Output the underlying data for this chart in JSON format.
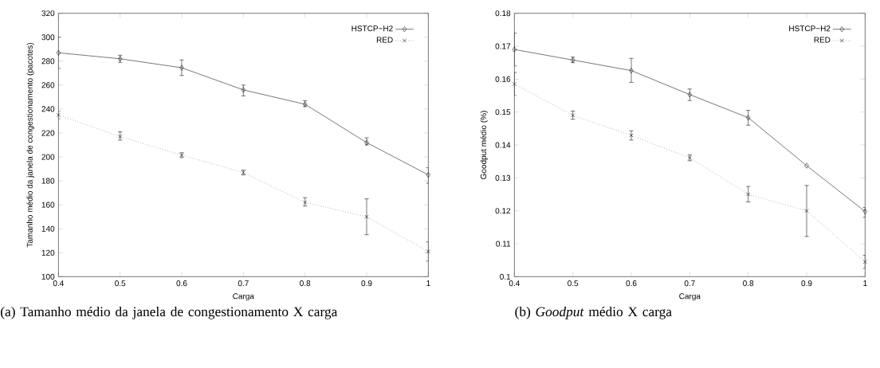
{
  "chart_data": [
    {
      "type": "line",
      "xlabel": "Carga",
      "ylabel": "Tamanho médio da janela de congestionamento (pacotes)",
      "x": [
        0.4,
        0.5,
        0.6,
        0.7,
        0.8,
        0.9,
        1
      ],
      "xlim": [
        0.4,
        1
      ],
      "xticks": [
        0.4,
        0.5,
        0.6,
        0.7,
        0.8,
        0.9,
        1
      ],
      "ylim": [
        100,
        320
      ],
      "yticks": [
        100,
        120,
        140,
        160,
        180,
        200,
        220,
        240,
        260,
        280,
        300,
        320
      ],
      "grid": false,
      "legend": "top right",
      "series": [
        {
          "name": "HSTCP−H2",
          "color": "#000000",
          "marker": "diamond",
          "line_style": "solid",
          "values": [
            287,
            282,
            274.5,
            256,
            244,
            212,
            185
          ],
          "errors": [
            [
              274,
              300
            ],
            [
              279,
              285
            ],
            [
              268,
              281
            ],
            [
              251,
              260
            ],
            [
              242,
              247
            ],
            [
              210,
              216
            ],
            [
              178,
              191
            ]
          ]
        },
        {
          "name": "RED",
          "color": "#000000",
          "marker": "cross",
          "line_style": "dotted",
          "values": [
            235,
            217,
            201.5,
            187,
            162,
            150,
            121
          ],
          "errors": [
            [
              232,
              238
            ],
            [
              214,
              221
            ],
            [
              199.5,
              203.5
            ],
            [
              185,
              189
            ],
            [
              159,
              166
            ],
            [
              135,
              165
            ],
            [
              113,
              129
            ]
          ]
        }
      ],
      "annotations": [
        "(a) Tamanho médio da janela de congestionamento X carga"
      ]
    },
    {
      "type": "line",
      "xlabel": "Carga",
      "ylabel": "Goodput médio (%)",
      "x": [
        0.4,
        0.5,
        0.6,
        0.7,
        0.8,
        0.9,
        1
      ],
      "xlim": [
        0.4,
        1
      ],
      "xticks": [
        0.4,
        0.5,
        0.6,
        0.7,
        0.8,
        0.9,
        1
      ],
      "ylim": [
        0.1,
        0.18
      ],
      "yticks": [
        0.1,
        0.11,
        0.12,
        0.13,
        0.14,
        0.15,
        0.16,
        0.17,
        0.18
      ],
      "grid": false,
      "legend": "top right",
      "series": [
        {
          "name": "HSTCP−H2",
          "color": "#000000",
          "marker": "diamond",
          "line_style": "solid",
          "values": [
            0.169,
            0.1658,
            0.1626,
            0.1553,
            0.1483,
            0.1337,
            0.1198
          ],
          "errors": [
            [
              0.164,
              0.174
            ],
            [
              0.165,
              0.1667
            ],
            [
              0.159,
              0.1663
            ],
            [
              0.1535,
              0.157
            ],
            [
              0.146,
              0.1505
            ],
            null,
            [
              0.118,
              0.121
            ]
          ]
        },
        {
          "name": "RED",
          "color": "#000000",
          "marker": "cross",
          "line_style": "dotted",
          "values": [
            0.1585,
            0.149,
            0.1429,
            0.1361,
            0.125,
            0.12,
            0.1045
          ],
          "errors": [
            [
              0.155,
              0.162
            ],
            [
              0.1478,
              0.1503
            ],
            [
              0.1415,
              0.1443
            ],
            [
              0.1352,
              0.137
            ],
            [
              0.1227,
              0.1274
            ],
            [
              0.1122,
              0.1277
            ],
            [
              0.1025,
              0.1065
            ]
          ]
        }
      ],
      "annotations": [
        "(b) *Goodput* médio X carga"
      ]
    }
  ]
}
